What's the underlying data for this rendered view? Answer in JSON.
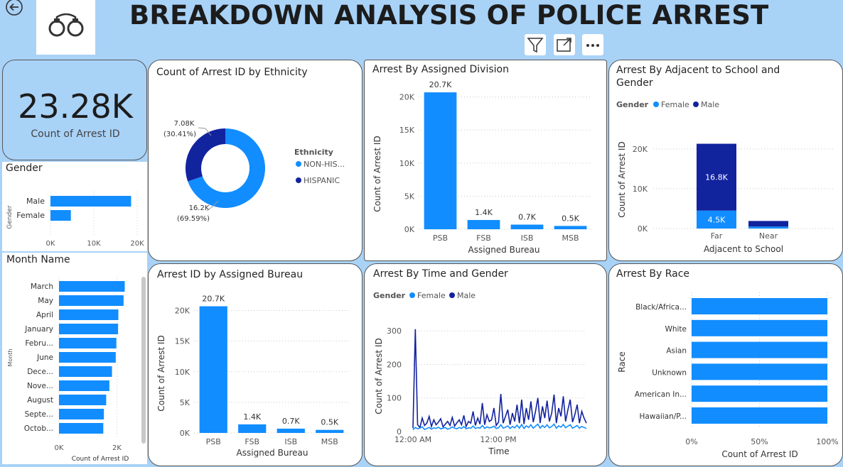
{
  "header": {
    "title": "BREAKDOWN ANALYSIS OF POLICE ARREST"
  },
  "kpi": {
    "value": "23.28K",
    "label": "Count of Arrest ID"
  },
  "visual_toolbar": {
    "icons": [
      "filter-icon",
      "focus-mode-icon",
      "more-options-icon"
    ]
  },
  "colors": {
    "light": "#118dff",
    "dark": "#12239e",
    "background": "#a9d2f7",
    "card": "#ffffff"
  },
  "gender_chart": {
    "title": "Gender",
    "y_title": "Gender",
    "chart_data": {
      "type": "bar",
      "orientation": "horizontal",
      "categories": [
        "Male",
        "Female"
      ],
      "values": [
        18600,
        4700
      ],
      "x_ticks": [
        "0K",
        "10K",
        "20K"
      ],
      "xlim": [
        0,
        20000
      ]
    }
  },
  "month_chart": {
    "title": "Month Name",
    "y_title": "Month",
    "x_title": "Count of Arrest ID",
    "chart_data": {
      "type": "bar",
      "orientation": "horizontal",
      "categories": [
        "March",
        "May",
        "April",
        "January",
        "Febru...",
        "June",
        "Dece...",
        "Nove...",
        "August",
        "Septe...",
        "Octob..."
      ],
      "values": [
        2270,
        2230,
        2050,
        2040,
        1980,
        1960,
        1830,
        1740,
        1630,
        1550,
        1530
      ],
      "x_ticks": [
        "0K",
        "2K"
      ],
      "xlim": [
        0,
        2700
      ]
    }
  },
  "ethnicity_chart": {
    "title": "Count of Arrest ID by Ethnicity",
    "legend_title": "Ethnicity",
    "chart_data": {
      "type": "pie",
      "donut": true,
      "categories": [
        "NON-HIS...",
        "HISPANIC"
      ],
      "values": [
        16200,
        7080
      ],
      "labels": [
        [
          "16.2K",
          "(69.59%)"
        ],
        [
          "7.08K",
          "(30.41%)"
        ]
      ]
    }
  },
  "division_chart": {
    "title": "Arrest By Assigned Division",
    "x_title": "Assigned Bureau",
    "y_title": "Count of Arrest ID",
    "chart_data": {
      "type": "bar",
      "categories": [
        "PSB",
        "FSB",
        "ISB",
        "MSB"
      ],
      "values": [
        20700,
        1400,
        700,
        500
      ],
      "data_labels": [
        "20.7K",
        "1.4K",
        "0.7K",
        "0.5K"
      ],
      "y_ticks": [
        "0K",
        "5K",
        "10K",
        "15K",
        "20K"
      ],
      "ylim": [
        0,
        22000
      ]
    }
  },
  "school_chart": {
    "title_lines": [
      "Arrest By Adjacent to School and",
      "Gender"
    ],
    "legend_title": "Gender",
    "legend": [
      "Female",
      "Male"
    ],
    "x_title": "Adjacent to School",
    "y_title": "Count of Arrest ID",
    "chart_data": {
      "type": "bar",
      "stacked": true,
      "categories": [
        "Far",
        "Near"
      ],
      "series": [
        {
          "name": "Female",
          "values": [
            4500,
            500
          ]
        },
        {
          "name": "Male",
          "values": [
            16800,
            1400
          ]
        }
      ],
      "data_labels": {
        "Female": [
          "4.5K",
          ""
        ],
        "Male": [
          "16.8K",
          ""
        ]
      },
      "y_ticks": [
        "0K",
        "10K",
        "20K"
      ],
      "ylim": [
        0,
        23000
      ]
    }
  },
  "bureau_chart": {
    "title": "Arrest ID by Assigned Bureau",
    "x_title": "Assigned Bureau",
    "y_title": "Count of Arrest ID",
    "chart_data": {
      "type": "bar",
      "categories": [
        "PSB",
        "FSB",
        "ISB",
        "MSB"
      ],
      "values": [
        20700,
        1400,
        700,
        500
      ],
      "data_labels": [
        "20.7K",
        "1.4K",
        "0.7K",
        "0.5K"
      ],
      "y_ticks": [
        "0K",
        "5K",
        "10K",
        "15K",
        "20K"
      ],
      "ylim": [
        0,
        22500
      ]
    }
  },
  "time_chart": {
    "title": "Arrest By Time and Gender",
    "legend_title": "Gender",
    "legend": [
      "Female",
      "Male"
    ],
    "x_title": "Time",
    "y_title": "Count of Arrest ID",
    "chart_data": {
      "type": "line",
      "x_ticks": [
        "12:00 AM",
        "12:00 PM"
      ],
      "y_ticks": [
        "0",
        "100",
        "200",
        "300"
      ],
      "ylim": [
        0,
        330
      ],
      "series": [
        {
          "name": "Male",
          "values": [
            10,
            305,
            20,
            12,
            40,
            18,
            25,
            45,
            15,
            35,
            20,
            28,
            38,
            14,
            22,
            30,
            18,
            42,
            16,
            26,
            35,
            20,
            48,
            15,
            30,
            25,
            60,
            18,
            40,
            22,
            85,
            20,
            50,
            30,
            35,
            70,
            18,
            28,
            112,
            25,
            45,
            65,
            20,
            55,
            30,
            80,
            25,
            95,
            22,
            70,
            35,
            90,
            28,
            60,
            100,
            25,
            75,
            40,
            92,
            30,
            55,
            110,
            25,
            70,
            45,
            105,
            30,
            65,
            95,
            28,
            50,
            80,
            25,
            60,
            40,
            25
          ]
        },
        {
          "name": "Female",
          "values": [
            5,
            12,
            8,
            10,
            14,
            6,
            9,
            12,
            7,
            11,
            9,
            13,
            8,
            10,
            12,
            7,
            9,
            14,
            10,
            8,
            12,
            9,
            15,
            8,
            11,
            10,
            16,
            9,
            12,
            10,
            18,
            9,
            14,
            11,
            12,
            16,
            9,
            11,
            20,
            10,
            13,
            17,
            9,
            15,
            11,
            19,
            10,
            21,
            9,
            17,
            12,
            20,
            10,
            16,
            22,
            10,
            18,
            12,
            20,
            11,
            15,
            22,
            10,
            17,
            13,
            21,
            11,
            16,
            20,
            10,
            14,
            18,
            10,
            15,
            12,
            9
          ]
        }
      ]
    }
  },
  "race_chart": {
    "title": "Arrest By Race",
    "x_title": "Count of Arrest ID",
    "y_title": "Race",
    "chart_data": {
      "type": "bar",
      "orientation": "horizontal",
      "stacked_percent": true,
      "categories": [
        "Black/Africa...",
        "White",
        "Asian",
        "Unknown",
        "American In...",
        "Hawaiian/P..."
      ],
      "values": [
        100,
        100,
        100,
        100,
        100,
        100
      ],
      "x_ticks": [
        "0%",
        "50%",
        "100%"
      ],
      "xlim": [
        0,
        100
      ]
    }
  }
}
